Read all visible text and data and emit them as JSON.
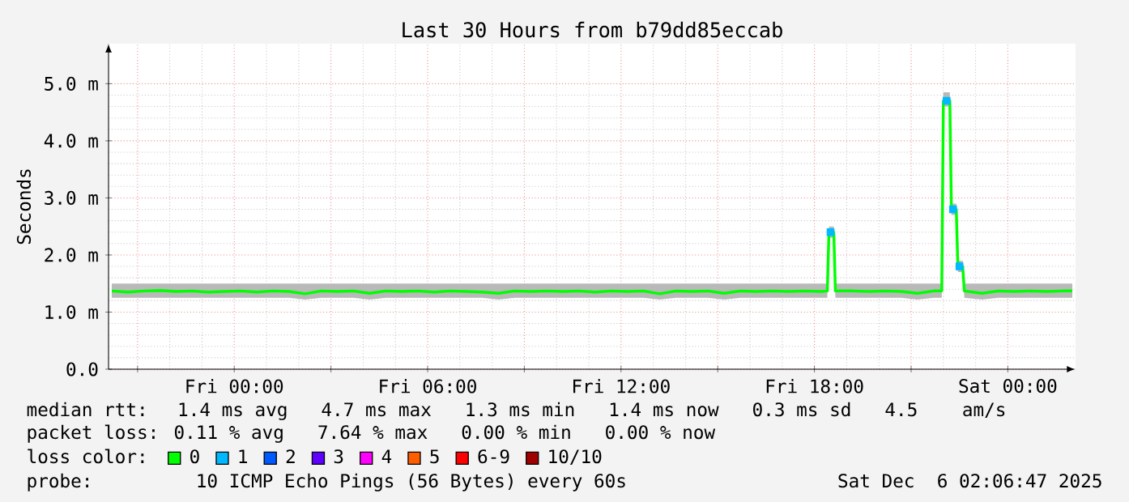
{
  "chart_data": {
    "type": "line",
    "title": "Last 30 Hours from b79dd85eccab",
    "ylabel": "Seconds",
    "legend_title": "loss color:",
    "legend": "bottom",
    "grid": true,
    "xlim": [
      "2025-12-04T20:06",
      "2025-12-06T02:06"
    ],
    "ylim": [
      0,
      5.7
    ],
    "xticks": [
      {
        "value": "2025-12-04T21:00",
        "label": null
      },
      {
        "value": "2025-12-05T00:00",
        "label": "Fri 00:00"
      },
      {
        "value": "2025-12-05T03:00",
        "label": null
      },
      {
        "value": "2025-12-05T06:00",
        "label": "Fri 06:00"
      },
      {
        "value": "2025-12-05T09:00",
        "label": null
      },
      {
        "value": "2025-12-05T12:00",
        "label": "Fri 12:00"
      },
      {
        "value": "2025-12-05T15:00",
        "label": null
      },
      {
        "value": "2025-12-05T18:00",
        "label": "Fri 18:00"
      },
      {
        "value": "2025-12-05T21:00",
        "label": null
      },
      {
        "value": "2025-12-06T00:00",
        "label": "Sat 00:00"
      }
    ],
    "yticks": [
      {
        "value": 0,
        "label": "0.0"
      },
      {
        "value": 1,
        "label": "1.0 m"
      },
      {
        "value": 2,
        "label": "2.0 m"
      },
      {
        "value": 3,
        "label": "3.0 m"
      },
      {
        "value": 4,
        "label": "4.0 m"
      },
      {
        "value": 5,
        "label": "5.0 m"
      }
    ],
    "x": [
      "2025-12-04T20:12",
      "2025-12-04T20:42",
      "2025-12-04T21:12",
      "2025-12-04T21:42",
      "2025-12-04T22:12",
      "2025-12-04T22:42",
      "2025-12-04T23:12",
      "2025-12-04T23:42",
      "2025-12-05T00:12",
      "2025-12-05T00:42",
      "2025-12-05T01:12",
      "2025-12-05T01:42",
      "2025-12-05T02:12",
      "2025-12-05T02:42",
      "2025-12-05T03:12",
      "2025-12-05T03:42",
      "2025-12-05T04:12",
      "2025-12-05T04:42",
      "2025-12-05T05:12",
      "2025-12-05T05:42",
      "2025-12-05T06:12",
      "2025-12-05T06:42",
      "2025-12-05T07:12",
      "2025-12-05T07:42",
      "2025-12-05T08:12",
      "2025-12-05T08:42",
      "2025-12-05T09:12",
      "2025-12-05T09:42",
      "2025-12-05T10:12",
      "2025-12-05T10:42",
      "2025-12-05T11:12",
      "2025-12-05T11:42",
      "2025-12-05T12:12",
      "2025-12-05T12:42",
      "2025-12-05T13:12",
      "2025-12-05T13:42",
      "2025-12-05T14:12",
      "2025-12-05T14:42",
      "2025-12-05T15:12",
      "2025-12-05T15:42",
      "2025-12-05T16:12",
      "2025-12-05T16:42",
      "2025-12-05T17:12",
      "2025-12-05T17:42",
      "2025-12-05T18:12",
      "2025-12-05T18:24",
      "2025-12-05T18:27",
      "2025-12-05T18:36",
      "2025-12-05T18:39",
      "2025-12-05T19:12",
      "2025-12-05T19:42",
      "2025-12-05T20:12",
      "2025-12-05T20:42",
      "2025-12-05T21:12",
      "2025-12-05T21:42",
      "2025-12-05T21:57",
      "2025-12-05T22:00",
      "2025-12-05T22:12",
      "2025-12-05T22:15",
      "2025-12-05T22:24",
      "2025-12-05T22:27",
      "2025-12-05T22:36",
      "2025-12-05T22:39",
      "2025-12-05T23:12",
      "2025-12-05T23:42",
      "2025-12-06T00:12",
      "2025-12-06T00:42",
      "2025-12-06T01:12",
      "2025-12-06T01:42",
      "2025-12-06T02:00"
    ],
    "series": [
      {
        "name": "0",
        "color": "#00ff00",
        "values": [
          1.37,
          1.35,
          1.37,
          1.38,
          1.36,
          1.37,
          1.35,
          1.36,
          1.37,
          1.35,
          1.37,
          1.36,
          1.32,
          1.37,
          1.36,
          1.37,
          1.33,
          1.37,
          1.36,
          1.37,
          1.35,
          1.37,
          1.36,
          1.35,
          1.33,
          1.37,
          1.36,
          1.37,
          1.36,
          1.37,
          1.35,
          1.37,
          1.36,
          1.37,
          1.32,
          1.37,
          1.36,
          1.37,
          1.33,
          1.37,
          1.36,
          1.37,
          1.36,
          1.37,
          1.36,
          1.37,
          2.4,
          2.4,
          1.37,
          1.37,
          1.36,
          1.37,
          1.36,
          1.33,
          1.37,
          1.37,
          4.7,
          4.7,
          2.8,
          2.8,
          1.8,
          1.8,
          1.37,
          1.33,
          1.37,
          1.36,
          1.37,
          1.36,
          1.37,
          1.37
        ],
        "lower": [
          1.25,
          1.25,
          1.25,
          1.25,
          1.25,
          1.25,
          1.25,
          1.25,
          1.25,
          1.25,
          1.25,
          1.25,
          1.22,
          1.25,
          1.25,
          1.25,
          1.22,
          1.25,
          1.25,
          1.25,
          1.25,
          1.25,
          1.25,
          1.25,
          1.22,
          1.25,
          1.25,
          1.25,
          1.25,
          1.25,
          1.25,
          1.25,
          1.25,
          1.25,
          1.22,
          1.25,
          1.25,
          1.25,
          1.22,
          1.25,
          1.25,
          1.25,
          1.25,
          1.25,
          1.25,
          1.25,
          2.3,
          2.3,
          1.25,
          1.25,
          1.25,
          1.25,
          1.25,
          1.22,
          1.25,
          1.25,
          4.6,
          4.6,
          2.7,
          2.7,
          1.7,
          1.7,
          1.25,
          1.22,
          1.25,
          1.25,
          1.25,
          1.25,
          1.25,
          1.25
        ],
        "upper": [
          1.5,
          1.5,
          1.5,
          1.5,
          1.5,
          1.5,
          1.5,
          1.5,
          1.5,
          1.5,
          1.5,
          1.5,
          1.5,
          1.5,
          1.5,
          1.5,
          1.5,
          1.5,
          1.5,
          1.5,
          1.5,
          1.5,
          1.5,
          1.5,
          1.5,
          1.5,
          1.5,
          1.5,
          1.5,
          1.5,
          1.5,
          1.5,
          1.5,
          1.5,
          1.5,
          1.5,
          1.5,
          1.5,
          1.5,
          1.5,
          1.5,
          1.5,
          1.5,
          1.5,
          1.5,
          1.5,
          2.5,
          2.5,
          1.5,
          1.5,
          1.5,
          1.5,
          1.5,
          1.5,
          1.5,
          1.5,
          4.85,
          4.85,
          2.9,
          2.9,
          1.9,
          1.9,
          1.5,
          1.5,
          1.5,
          1.5,
          1.5,
          1.5,
          1.5,
          1.5
        ]
      },
      {
        "name": "1",
        "color": "#00b8ff",
        "type": "scatter",
        "marker": "square",
        "x": [
          "2025-12-05T18:30",
          "2025-12-05T22:06",
          "2025-12-05T22:18",
          "2025-12-05T22:30"
        ],
        "values": [
          2.4,
          4.7,
          2.8,
          1.8
        ]
      },
      {
        "name": "2",
        "color": "#0059ff",
        "values": [
          null,
          null,
          null,
          null,
          null,
          null,
          null,
          null,
          null,
          null,
          null,
          null,
          null,
          null,
          null,
          null,
          null,
          null,
          null,
          null,
          null,
          null,
          null,
          null,
          null,
          null,
          null,
          null,
          null,
          null,
          null,
          null,
          null,
          null,
          null,
          null,
          null,
          null,
          null,
          null,
          null,
          null,
          null,
          null,
          null,
          null,
          null,
          null,
          null,
          null,
          null,
          null,
          null,
          null,
          null,
          null,
          null,
          null,
          null,
          null,
          null,
          null,
          null,
          null,
          null,
          null,
          null,
          null,
          null,
          null
        ]
      },
      {
        "name": "3",
        "color": "#5e00ff",
        "values": [
          null,
          null,
          null,
          null,
          null,
          null,
          null,
          null,
          null,
          null,
          null,
          null,
          null,
          null,
          null,
          null,
          null,
          null,
          null,
          null,
          null,
          null,
          null,
          null,
          null,
          null,
          null,
          null,
          null,
          null,
          null,
          null,
          null,
          null,
          null,
          null,
          null,
          null,
          null,
          null,
          null,
          null,
          null,
          null,
          null,
          null,
          null,
          null,
          null,
          null,
          null,
          null,
          null,
          null,
          null,
          null,
          null,
          null,
          null,
          null,
          null,
          null,
          null,
          null,
          null,
          null,
          null,
          null,
          null,
          null
        ]
      },
      {
        "name": "4",
        "color": "#ff00ff",
        "values": [
          null,
          null,
          null,
          null,
          null,
          null,
          null,
          null,
          null,
          null,
          null,
          null,
          null,
          null,
          null,
          null,
          null,
          null,
          null,
          null,
          null,
          null,
          null,
          null,
          null,
          null,
          null,
          null,
          null,
          null,
          null,
          null,
          null,
          null,
          null,
          null,
          null,
          null,
          null,
          null,
          null,
          null,
          null,
          null,
          null,
          null,
          null,
          null,
          null,
          null,
          null,
          null,
          null,
          null,
          null,
          null,
          null,
          null,
          null,
          null,
          null,
          null,
          null,
          null,
          null,
          null,
          null,
          null,
          null,
          null
        ]
      },
      {
        "name": "5",
        "color": "#ff5e00",
        "values": [
          null,
          null,
          null,
          null,
          null,
          null,
          null,
          null,
          null,
          null,
          null,
          null,
          null,
          null,
          null,
          null,
          null,
          null,
          null,
          null,
          null,
          null,
          null,
          null,
          null,
          null,
          null,
          null,
          null,
          null,
          null,
          null,
          null,
          null,
          null,
          null,
          null,
          null,
          null,
          null,
          null,
          null,
          null,
          null,
          null,
          null,
          null,
          null,
          null,
          null,
          null,
          null,
          null,
          null,
          null,
          null,
          null,
          null,
          null,
          null,
          null,
          null,
          null,
          null,
          null,
          null,
          null,
          null,
          null,
          null
        ]
      },
      {
        "name": "6-9",
        "color": "#ff0000",
        "values": [
          null,
          null,
          null,
          null,
          null,
          null,
          null,
          null,
          null,
          null,
          null,
          null,
          null,
          null,
          null,
          null,
          null,
          null,
          null,
          null,
          null,
          null,
          null,
          null,
          null,
          null,
          null,
          null,
          null,
          null,
          null,
          null,
          null,
          null,
          null,
          null,
          null,
          null,
          null,
          null,
          null,
          null,
          null,
          null,
          null,
          null,
          null,
          null,
          null,
          null,
          null,
          null,
          null,
          null,
          null,
          null,
          null,
          null,
          null,
          null,
          null,
          null,
          null,
          null,
          null,
          null,
          null,
          null,
          null,
          null
        ]
      },
      {
        "name": "10/10",
        "color": "#a10000",
        "values": [
          null,
          null,
          null,
          null,
          null,
          null,
          null,
          null,
          null,
          null,
          null,
          null,
          null,
          null,
          null,
          null,
          null,
          null,
          null,
          null,
          null,
          null,
          null,
          null,
          null,
          null,
          null,
          null,
          null,
          null,
          null,
          null,
          null,
          null,
          null,
          null,
          null,
          null,
          null,
          null,
          null,
          null,
          null,
          null,
          null,
          null,
          null,
          null,
          null,
          null,
          null,
          null,
          null,
          null,
          null,
          null,
          null,
          null,
          null,
          null,
          null,
          null,
          null,
          null,
          null,
          null,
          null,
          null,
          null,
          null
        ]
      }
    ],
    "annotations": [
      "median rtt:  1.4 ms avg   4.7 ms max   1.3 ms min   1.4 ms now   0.3 ms sd   4.5    am/s",
      "packet loss: 0.11 % avg   7.64 % max   0.00 % min   0.00 % now",
      "probe:       10 ICMP Echo Pings (56 Bytes) every 60s",
      "Sat Dec  6 02:06:47 2025"
    ]
  }
}
